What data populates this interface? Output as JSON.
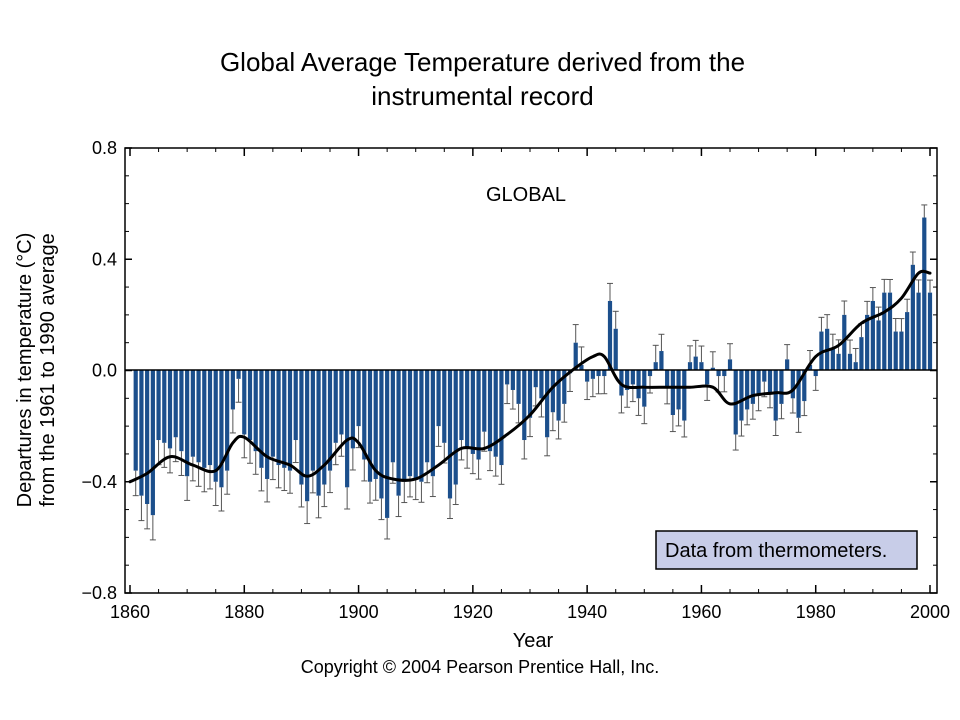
{
  "slide": {
    "title_line1": "Global Average Temperature derived from the",
    "title_line2": "instrumental record"
  },
  "credit": "Copyright © 2004 Pearson Prentice Hall, Inc.",
  "colors": {
    "bar": "#1c4f8c",
    "whisker": "#555555",
    "trend": "#000000",
    "legend_box": "#c8cde8",
    "zero_line": "#000000"
  },
  "chart_data": {
    "type": "bar",
    "panel_label": "GLOBAL",
    "annotation": "Data from thermometers.",
    "xlabel": "Year",
    "ylabel_line1": "Departures in temperature (°C)",
    "ylabel_line2": "from the 1961 to 1990 average",
    "xlim": [
      1860,
      2000
    ],
    "ylim": [
      -0.8,
      0.8
    ],
    "x_ticks": [
      1860,
      1880,
      1900,
      1920,
      1940,
      1960,
      1980,
      2000
    ],
    "y_ticks": [
      -0.8,
      -0.4,
      0.0,
      0.4,
      0.8
    ],
    "y_tick_labels": [
      "−0.8",
      "−0.4",
      "0.0",
      "0.4",
      "0.8"
    ],
    "series": [
      {
        "kind": "annual departure",
        "start_year": 1861,
        "values": [
          -0.36,
          -0.45,
          -0.48,
          -0.52,
          -0.25,
          -0.26,
          -0.28,
          -0.24,
          -0.29,
          -0.38,
          -0.31,
          -0.33,
          -0.35,
          -0.34,
          -0.4,
          -0.42,
          -0.36,
          -0.14,
          -0.03,
          -0.23,
          -0.25,
          -0.29,
          -0.35,
          -0.39,
          -0.31,
          -0.34,
          -0.35,
          -0.36,
          -0.25,
          -0.41,
          -0.47,
          -0.36,
          -0.45,
          -0.41,
          -0.36,
          -0.26,
          -0.23,
          -0.42,
          -0.28,
          -0.2,
          -0.32,
          -0.4,
          -0.39,
          -0.46,
          -0.53,
          -0.33,
          -0.45,
          -0.4,
          -0.38,
          -0.39,
          -0.4,
          -0.33,
          -0.38,
          -0.2,
          -0.26,
          -0.46,
          -0.41,
          -0.25,
          -0.28,
          -0.3,
          -0.32,
          -0.22,
          -0.29,
          -0.31,
          -0.34,
          -0.05,
          -0.07,
          -0.12,
          -0.25,
          -0.17,
          -0.06,
          -0.1,
          -0.24,
          -0.15,
          -0.18,
          -0.12,
          -0.01,
          0.1,
          0.02,
          -0.04,
          -0.03,
          -0.02,
          -0.02,
          0.25,
          0.15,
          -0.09,
          -0.07,
          -0.05,
          -0.1,
          -0.13,
          -0.02,
          0.03,
          0.07,
          -0.06,
          -0.16,
          -0.14,
          -0.18,
          0.03,
          0.05,
          0.03,
          -0.05,
          0.01,
          -0.02,
          -0.02,
          0.04,
          -0.23,
          -0.18,
          -0.14,
          -0.12,
          -0.09,
          -0.04,
          -0.08,
          -0.18,
          -0.12,
          0.04,
          -0.1,
          -0.17,
          -0.11,
          0.02,
          -0.02,
          0.14,
          0.15,
          0.08,
          0.06,
          0.2,
          0.06,
          0.03,
          0.12,
          0.2,
          0.25,
          0.18,
          0.28,
          0.28,
          0.14,
          0.14,
          0.21,
          0.38,
          0.28,
          0.55,
          0.28
        ]
      },
      {
        "kind": "smoothed trend",
        "x": [
          1860,
          1863,
          1867,
          1871,
          1875,
          1878,
          1880,
          1884,
          1888,
          1891,
          1894,
          1898,
          1900,
          1903,
          1906,
          1910,
          1914,
          1918,
          1922,
          1926,
          1930,
          1934,
          1938,
          1941,
          1943,
          1946,
          1950,
          1954,
          1958,
          1962,
          1965,
          1969,
          1973,
          1976,
          1980,
          1984,
          1988,
          1992,
          1995,
          1998,
          2000
        ],
        "y": [
          -0.4,
          -0.37,
          -0.31,
          -0.34,
          -0.36,
          -0.26,
          -0.24,
          -0.31,
          -0.34,
          -0.38,
          -0.34,
          -0.25,
          -0.26,
          -0.36,
          -0.39,
          -0.39,
          -0.34,
          -0.28,
          -0.28,
          -0.23,
          -0.16,
          -0.06,
          0.01,
          0.05,
          0.05,
          -0.05,
          -0.06,
          -0.06,
          -0.06,
          -0.06,
          -0.12,
          -0.09,
          -0.08,
          -0.07,
          0.05,
          0.09,
          0.17,
          0.21,
          0.26,
          0.35,
          0.35
        ]
      }
    ]
  }
}
